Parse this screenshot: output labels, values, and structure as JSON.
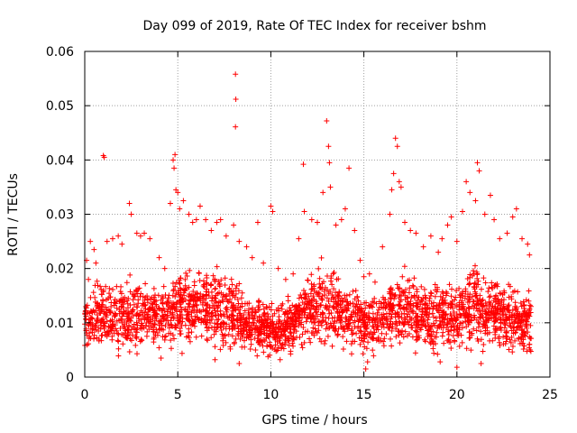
{
  "chart_data": {
    "type": "scatter",
    "title": "Day 099 of 2019, Rate Of TEC Index for receiver bshm",
    "xlabel": "GPS time / hours",
    "ylabel": "ROTI / TECUs",
    "xlim": [
      0,
      25
    ],
    "ylim": [
      0,
      0.06
    ],
    "x_ticks": [
      "0",
      "5",
      "10",
      "15",
      "20",
      "25"
    ],
    "y_ticks": [
      "0",
      "0.01",
      "0.02",
      "0.03",
      "0.04",
      "0.05",
      "0.06"
    ],
    "grid": true,
    "marker": "plus",
    "series_color": "#ff0000",
    "series": [
      {
        "name": "ROTI",
        "points": [
          [
            0.1,
            0.0215
          ],
          [
            0.2,
            0.018
          ],
          [
            0.3,
            0.025
          ],
          [
            0.5,
            0.0235
          ],
          [
            0.6,
            0.021
          ],
          [
            1.0,
            0.0408
          ],
          [
            1.05,
            0.0405
          ],
          [
            1.2,
            0.025
          ],
          [
            1.5,
            0.0255
          ],
          [
            1.8,
            0.026
          ],
          [
            2.0,
            0.0245
          ],
          [
            2.4,
            0.032
          ],
          [
            2.5,
            0.03
          ],
          [
            2.8,
            0.0265
          ],
          [
            3.0,
            0.026
          ],
          [
            3.2,
            0.0265
          ],
          [
            3.5,
            0.0255
          ],
          [
            4.0,
            0.022
          ],
          [
            4.3,
            0.02
          ],
          [
            4.6,
            0.032
          ],
          [
            4.75,
            0.04
          ],
          [
            4.8,
            0.0385
          ],
          [
            4.85,
            0.041
          ],
          [
            4.9,
            0.0345
          ],
          [
            5.0,
            0.034
          ],
          [
            5.1,
            0.031
          ],
          [
            5.3,
            0.0325
          ],
          [
            5.6,
            0.03
          ],
          [
            5.8,
            0.0285
          ],
          [
            6.0,
            0.029
          ],
          [
            6.2,
            0.0315
          ],
          [
            6.5,
            0.029
          ],
          [
            6.8,
            0.027
          ],
          [
            7.1,
            0.0285
          ],
          [
            7.3,
            0.029
          ],
          [
            7.6,
            0.026
          ],
          [
            8.0,
            0.028
          ],
          [
            8.1,
            0.0558
          ],
          [
            8.12,
            0.0512
          ],
          [
            8.1,
            0.0461
          ],
          [
            8.3,
            0.025
          ],
          [
            8.7,
            0.024
          ],
          [
            9.0,
            0.022
          ],
          [
            9.3,
            0.0285
          ],
          [
            9.6,
            0.021
          ],
          [
            10.0,
            0.0315
          ],
          [
            10.1,
            0.0305
          ],
          [
            10.4,
            0.02
          ],
          [
            10.8,
            0.018
          ],
          [
            11.2,
            0.019
          ],
          [
            11.5,
            0.0255
          ],
          [
            11.75,
            0.0392
          ],
          [
            11.8,
            0.0305
          ],
          [
            12.2,
            0.029
          ],
          [
            12.5,
            0.0285
          ],
          [
            12.8,
            0.034
          ],
          [
            13.0,
            0.0472
          ],
          [
            13.1,
            0.0425
          ],
          [
            13.15,
            0.0395
          ],
          [
            13.2,
            0.035
          ],
          [
            13.5,
            0.028
          ],
          [
            13.8,
            0.029
          ],
          [
            14.0,
            0.031
          ],
          [
            14.2,
            0.0385
          ],
          [
            14.5,
            0.027
          ],
          [
            14.8,
            0.0215
          ],
          [
            15.0,
            0.0185
          ],
          [
            15.3,
            0.019
          ],
          [
            15.6,
            0.0175
          ],
          [
            16.0,
            0.024
          ],
          [
            16.4,
            0.03
          ],
          [
            16.5,
            0.0345
          ],
          [
            16.6,
            0.0375
          ],
          [
            16.7,
            0.044
          ],
          [
            16.8,
            0.0425
          ],
          [
            16.9,
            0.036
          ],
          [
            17.0,
            0.035
          ],
          [
            17.2,
            0.0285
          ],
          [
            17.5,
            0.027
          ],
          [
            17.8,
            0.0265
          ],
          [
            18.2,
            0.024
          ],
          [
            18.6,
            0.026
          ],
          [
            19.0,
            0.023
          ],
          [
            19.2,
            0.0255
          ],
          [
            19.5,
            0.028
          ],
          [
            19.7,
            0.0295
          ],
          [
            20.0,
            0.025
          ],
          [
            20.3,
            0.0305
          ],
          [
            20.5,
            0.036
          ],
          [
            20.7,
            0.034
          ],
          [
            21.0,
            0.0325
          ],
          [
            21.1,
            0.0395
          ],
          [
            21.2,
            0.038
          ],
          [
            21.5,
            0.03
          ],
          [
            21.8,
            0.0335
          ],
          [
            22.0,
            0.029
          ],
          [
            22.3,
            0.0255
          ],
          [
            22.7,
            0.0265
          ],
          [
            23.0,
            0.0295
          ],
          [
            23.2,
            0.031
          ],
          [
            23.5,
            0.0255
          ],
          [
            23.8,
            0.0245
          ],
          [
            23.9,
            0.0225
          ],
          [
            4.1,
            0.0035
          ],
          [
            7.0,
            0.0032
          ],
          [
            8.3,
            0.0025
          ],
          [
            10.5,
            0.0032
          ],
          [
            15.1,
            0.0015
          ],
          [
            15.2,
            0.0028
          ],
          [
            19.1,
            0.0028
          ],
          [
            20.0,
            0.0018
          ],
          [
            21.3,
            0.0025
          ],
          [
            23.9,
            0.006
          ]
        ]
      }
    ],
    "dense_band": {
      "note": "dense cloud of ROTI samples across the whole day (0-24 h)",
      "x_range": [
        0,
        24
      ],
      "y_low_hourly": [
        0.004,
        0.004,
        0.004,
        0.004,
        0.006,
        0.005,
        0.005,
        0.005,
        0.005,
        0.004,
        0.004,
        0.004,
        0.005,
        0.005,
        0.004,
        0.004,
        0.005,
        0.005,
        0.004,
        0.004,
        0.004,
        0.004,
        0.004,
        0.004,
        0.004
      ],
      "y_high_hourly": [
        0.018,
        0.02,
        0.02,
        0.02,
        0.018,
        0.022,
        0.022,
        0.022,
        0.02,
        0.016,
        0.015,
        0.016,
        0.021,
        0.024,
        0.02,
        0.016,
        0.018,
        0.023,
        0.019,
        0.019,
        0.02,
        0.024,
        0.021,
        0.019,
        0.017
      ]
    }
  }
}
